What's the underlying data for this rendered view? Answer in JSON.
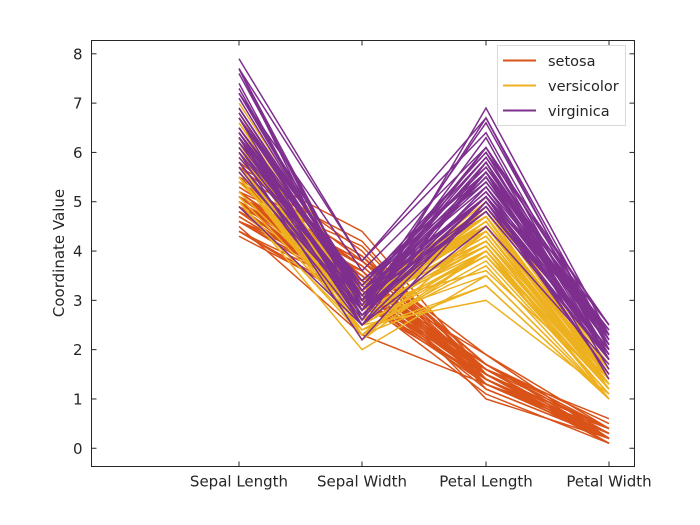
{
  "chart_data": {
    "type": "line",
    "subtype": "parallel-coordinates",
    "title": "",
    "xlabel": "",
    "ylabel": "Coordinate Value",
    "categories": [
      "Sepal Length",
      "Sepal Width",
      "Petal Length",
      "Petal Width"
    ],
    "ylim": [
      -0.37,
      8.27
    ],
    "yticks": [
      0,
      1,
      2,
      3,
      4,
      5,
      6,
      7,
      8
    ],
    "grid": false,
    "legend": {
      "position": "top-right",
      "entries": [
        "setosa",
        "versicolor",
        "virginica"
      ]
    },
    "colors": {
      "setosa": "#D95319",
      "versicolor": "#EDB120",
      "virginica": "#7E2F8E"
    },
    "series": [
      {
        "name": "setosa",
        "values": [
          [
            5.1,
            3.5,
            1.4,
            0.2
          ],
          [
            4.9,
            3.0,
            1.4,
            0.2
          ],
          [
            4.7,
            3.2,
            1.3,
            0.2
          ],
          [
            4.6,
            3.1,
            1.5,
            0.2
          ],
          [
            5.0,
            3.6,
            1.4,
            0.2
          ],
          [
            5.4,
            3.9,
            1.7,
            0.4
          ],
          [
            4.6,
            3.4,
            1.4,
            0.3
          ],
          [
            5.0,
            3.4,
            1.5,
            0.2
          ],
          [
            4.4,
            2.9,
            1.4,
            0.2
          ],
          [
            4.9,
            3.1,
            1.5,
            0.1
          ],
          [
            5.4,
            3.7,
            1.5,
            0.2
          ],
          [
            4.8,
            3.4,
            1.6,
            0.2
          ],
          [
            4.8,
            3.0,
            1.4,
            0.1
          ],
          [
            4.3,
            3.0,
            1.1,
            0.1
          ],
          [
            5.8,
            4.0,
            1.2,
            0.2
          ],
          [
            5.7,
            4.4,
            1.5,
            0.4
          ],
          [
            5.4,
            3.9,
            1.3,
            0.4
          ],
          [
            5.1,
            3.5,
            1.4,
            0.3
          ],
          [
            5.7,
            3.8,
            1.7,
            0.3
          ],
          [
            5.1,
            3.8,
            1.5,
            0.3
          ],
          [
            5.4,
            3.4,
            1.7,
            0.2
          ],
          [
            5.1,
            3.7,
            1.5,
            0.4
          ],
          [
            4.6,
            3.6,
            1.0,
            0.2
          ],
          [
            5.1,
            3.3,
            1.7,
            0.5
          ],
          [
            4.8,
            3.4,
            1.9,
            0.2
          ],
          [
            5.0,
            3.0,
            1.6,
            0.2
          ],
          [
            5.0,
            3.4,
            1.6,
            0.4
          ],
          [
            5.2,
            3.5,
            1.5,
            0.2
          ],
          [
            5.2,
            3.4,
            1.4,
            0.2
          ],
          [
            4.7,
            3.2,
            1.6,
            0.2
          ],
          [
            4.8,
            3.1,
            1.6,
            0.2
          ],
          [
            5.4,
            3.4,
            1.5,
            0.4
          ],
          [
            5.2,
            4.1,
            1.5,
            0.1
          ],
          [
            5.5,
            4.2,
            1.4,
            0.2
          ],
          [
            4.9,
            3.1,
            1.5,
            0.2
          ],
          [
            5.0,
            3.2,
            1.2,
            0.2
          ],
          [
            5.5,
            3.5,
            1.3,
            0.2
          ],
          [
            4.9,
            3.6,
            1.4,
            0.1
          ],
          [
            4.4,
            3.0,
            1.3,
            0.2
          ],
          [
            5.1,
            3.4,
            1.5,
            0.2
          ],
          [
            5.0,
            3.5,
            1.3,
            0.3
          ],
          [
            4.5,
            2.3,
            1.3,
            0.3
          ],
          [
            4.4,
            3.2,
            1.3,
            0.2
          ],
          [
            5.0,
            3.5,
            1.6,
            0.6
          ],
          [
            5.1,
            3.8,
            1.9,
            0.4
          ],
          [
            4.8,
            3.0,
            1.4,
            0.3
          ],
          [
            5.1,
            3.8,
            1.6,
            0.2
          ],
          [
            4.6,
            3.2,
            1.4,
            0.2
          ],
          [
            5.3,
            3.7,
            1.5,
            0.2
          ],
          [
            5.0,
            3.3,
            1.4,
            0.2
          ]
        ]
      },
      {
        "name": "versicolor",
        "values": [
          [
            7.0,
            3.2,
            4.7,
            1.4
          ],
          [
            6.4,
            3.2,
            4.5,
            1.5
          ],
          [
            6.9,
            3.1,
            4.9,
            1.5
          ],
          [
            5.5,
            2.3,
            4.0,
            1.3
          ],
          [
            6.5,
            2.8,
            4.6,
            1.5
          ],
          [
            5.7,
            2.8,
            4.5,
            1.3
          ],
          [
            6.3,
            3.3,
            4.7,
            1.6
          ],
          [
            4.9,
            2.4,
            3.3,
            1.0
          ],
          [
            6.6,
            2.9,
            4.6,
            1.3
          ],
          [
            5.2,
            2.7,
            3.9,
            1.4
          ],
          [
            5.0,
            2.0,
            3.5,
            1.0
          ],
          [
            5.9,
            3.0,
            4.2,
            1.5
          ],
          [
            6.0,
            2.2,
            4.0,
            1.0
          ],
          [
            6.1,
            2.9,
            4.7,
            1.4
          ],
          [
            5.6,
            2.9,
            3.6,
            1.3
          ],
          [
            6.7,
            3.1,
            4.4,
            1.4
          ],
          [
            5.6,
            3.0,
            4.5,
            1.5
          ],
          [
            5.8,
            2.7,
            4.1,
            1.0
          ],
          [
            6.2,
            2.2,
            4.5,
            1.5
          ],
          [
            5.6,
            2.5,
            3.9,
            1.1
          ],
          [
            5.9,
            3.2,
            4.8,
            1.8
          ],
          [
            6.1,
            2.8,
            4.0,
            1.3
          ],
          [
            6.3,
            2.5,
            4.9,
            1.5
          ],
          [
            6.1,
            2.8,
            4.7,
            1.2
          ],
          [
            6.4,
            2.9,
            4.3,
            1.3
          ],
          [
            6.6,
            3.0,
            4.4,
            1.4
          ],
          [
            6.8,
            2.8,
            4.8,
            1.4
          ],
          [
            6.7,
            3.0,
            5.0,
            1.7
          ],
          [
            6.0,
            2.9,
            4.5,
            1.5
          ],
          [
            5.7,
            2.6,
            3.5,
            1.0
          ],
          [
            5.5,
            2.4,
            3.8,
            1.1
          ],
          [
            5.5,
            2.4,
            3.7,
            1.0
          ],
          [
            5.8,
            2.7,
            3.9,
            1.2
          ],
          [
            6.0,
            2.7,
            5.1,
            1.6
          ],
          [
            5.4,
            3.0,
            4.5,
            1.5
          ],
          [
            6.0,
            3.4,
            4.5,
            1.6
          ],
          [
            6.7,
            3.1,
            4.7,
            1.5
          ],
          [
            6.3,
            2.3,
            4.4,
            1.3
          ],
          [
            5.6,
            3.0,
            4.1,
            1.3
          ],
          [
            5.5,
            2.5,
            4.0,
            1.3
          ],
          [
            5.5,
            2.6,
            4.4,
            1.2
          ],
          [
            6.1,
            3.0,
            4.6,
            1.4
          ],
          [
            5.8,
            2.6,
            4.0,
            1.2
          ],
          [
            5.0,
            2.3,
            3.3,
            1.0
          ],
          [
            5.6,
            2.7,
            4.2,
            1.3
          ],
          [
            5.7,
            3.0,
            4.2,
            1.2
          ],
          [
            5.7,
            2.9,
            4.2,
            1.3
          ],
          [
            6.2,
            2.9,
            4.3,
            1.3
          ],
          [
            5.1,
            2.5,
            3.0,
            1.1
          ],
          [
            5.7,
            2.8,
            4.1,
            1.3
          ]
        ]
      },
      {
        "name": "virginica",
        "values": [
          [
            6.3,
            3.3,
            6.0,
            2.5
          ],
          [
            5.8,
            2.7,
            5.1,
            1.9
          ],
          [
            7.1,
            3.0,
            5.9,
            2.1
          ],
          [
            6.3,
            2.9,
            5.6,
            1.8
          ],
          [
            6.5,
            3.0,
            5.8,
            2.2
          ],
          [
            7.6,
            3.0,
            6.6,
            2.1
          ],
          [
            4.9,
            2.5,
            4.5,
            1.7
          ],
          [
            7.3,
            2.9,
            6.3,
            1.8
          ],
          [
            6.7,
            2.5,
            5.8,
            1.8
          ],
          [
            7.2,
            3.6,
            6.1,
            2.5
          ],
          [
            6.5,
            3.2,
            5.1,
            2.0
          ],
          [
            6.4,
            2.7,
            5.3,
            1.9
          ],
          [
            6.8,
            3.0,
            5.5,
            2.1
          ],
          [
            5.7,
            2.5,
            5.0,
            2.0
          ],
          [
            5.8,
            2.8,
            5.1,
            2.4
          ],
          [
            6.4,
            3.2,
            5.3,
            2.3
          ],
          [
            6.5,
            3.0,
            5.5,
            1.8
          ],
          [
            7.7,
            3.8,
            6.7,
            2.2
          ],
          [
            7.7,
            2.6,
            6.9,
            2.3
          ],
          [
            6.0,
            2.2,
            5.0,
            1.5
          ],
          [
            6.9,
            3.2,
            5.7,
            2.3
          ],
          [
            5.6,
            2.8,
            4.9,
            2.0
          ],
          [
            7.7,
            2.8,
            6.7,
            2.0
          ],
          [
            6.3,
            2.7,
            4.9,
            1.8
          ],
          [
            6.7,
            3.3,
            5.7,
            2.1
          ],
          [
            7.2,
            3.2,
            6.0,
            1.8
          ],
          [
            6.2,
            2.8,
            4.8,
            1.8
          ],
          [
            6.1,
            3.0,
            4.9,
            1.8
          ],
          [
            6.4,
            2.8,
            5.6,
            2.1
          ],
          [
            7.2,
            3.0,
            5.8,
            1.6
          ],
          [
            7.4,
            2.8,
            6.1,
            1.9
          ],
          [
            7.9,
            3.8,
            6.4,
            2.0
          ],
          [
            6.4,
            2.8,
            5.6,
            2.2
          ],
          [
            6.3,
            2.8,
            5.1,
            1.5
          ],
          [
            6.1,
            2.6,
            5.6,
            1.4
          ],
          [
            7.7,
            3.0,
            6.1,
            2.3
          ],
          [
            6.3,
            3.4,
            5.6,
            2.4
          ],
          [
            6.4,
            3.1,
            5.5,
            1.8
          ],
          [
            6.0,
            3.0,
            4.8,
            1.8
          ],
          [
            6.9,
            3.1,
            5.4,
            2.1
          ],
          [
            6.7,
            3.1,
            5.6,
            2.4
          ],
          [
            6.9,
            3.1,
            5.1,
            2.3
          ],
          [
            5.8,
            2.7,
            5.1,
            1.9
          ],
          [
            6.8,
            3.2,
            5.9,
            2.3
          ],
          [
            6.7,
            3.3,
            5.7,
            2.5
          ],
          [
            6.7,
            3.0,
            5.2,
            2.3
          ],
          [
            6.3,
            2.5,
            5.0,
            1.9
          ],
          [
            6.5,
            3.0,
            5.2,
            2.0
          ],
          [
            6.2,
            3.4,
            5.4,
            2.3
          ],
          [
            5.9,
            3.0,
            5.1,
            1.8
          ]
        ]
      }
    ]
  }
}
